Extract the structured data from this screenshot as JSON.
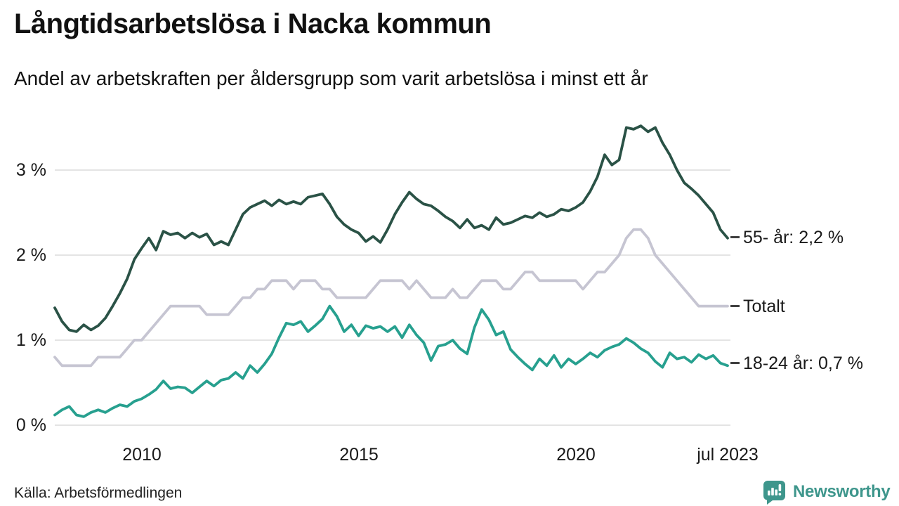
{
  "header": {
    "title": "Långtidsarbetslösa i Nacka kommun",
    "subtitle": "Andel av arbetskraften per åldersgrupp som varit arbetslösa i minst ett år"
  },
  "footer": {
    "source": "Källa: Arbetsförmedlingen",
    "brand": "Newsworthy"
  },
  "colors": {
    "background": "#ffffff",
    "text": "#1a1a1a",
    "grid": "#e4e4e4",
    "tick_dash": "#3f3f3f",
    "logo": "#3e968c",
    "series_55": "#2a5246",
    "series_total": "#c6c5d2",
    "series_18_24": "#27a08f"
  },
  "chart_data": {
    "type": "line",
    "title": "Långtidsarbetslösa i Nacka kommun",
    "subtitle": "Andel av arbetskraften per åldersgrupp som varit arbetslösa i minst ett år",
    "unit": "%",
    "x_start": "jan 2008",
    "x_end": "jul 2023",
    "x_step_months": 2,
    "grid": "horizontal-only",
    "legend_position": "end-of-line labels, right side",
    "ylim": [
      0,
      3.6
    ],
    "x_ticks": [
      {
        "label": "2010"
      },
      {
        "label": "2015"
      },
      {
        "label": "2020"
      },
      {
        "label": "jul 2023"
      }
    ],
    "y_ticks": [
      {
        "label": "3 %",
        "value": 3
      },
      {
        "label": "2 %",
        "value": 2
      },
      {
        "label": "1 %",
        "value": 1
      },
      {
        "label": "0 %",
        "value": 0
      }
    ],
    "series": [
      {
        "id": "total",
        "name": "Totalt",
        "end_label": "Totalt",
        "end_value": 1.4,
        "color": "#c6c5d2",
        "values": [
          0.8,
          0.7,
          0.7,
          0.7,
          0.7,
          0.7,
          0.8,
          0.8,
          0.8,
          0.8,
          0.9,
          1.0,
          1.0,
          1.1,
          1.2,
          1.3,
          1.4,
          1.4,
          1.4,
          1.4,
          1.4,
          1.3,
          1.3,
          1.3,
          1.3,
          1.4,
          1.5,
          1.5,
          1.6,
          1.6,
          1.7,
          1.7,
          1.7,
          1.6,
          1.7,
          1.7,
          1.7,
          1.6,
          1.6,
          1.5,
          1.5,
          1.5,
          1.5,
          1.5,
          1.6,
          1.7,
          1.7,
          1.7,
          1.7,
          1.6,
          1.7,
          1.6,
          1.5,
          1.5,
          1.5,
          1.6,
          1.5,
          1.5,
          1.6,
          1.7,
          1.7,
          1.7,
          1.6,
          1.6,
          1.7,
          1.8,
          1.8,
          1.7,
          1.7,
          1.7,
          1.7,
          1.7,
          1.7,
          1.6,
          1.7,
          1.8,
          1.8,
          1.9,
          2.0,
          2.2,
          2.3,
          2.3,
          2.2,
          2.0,
          1.9,
          1.8,
          1.7,
          1.6,
          1.5,
          1.4,
          1.4,
          1.4,
          1.4,
          1.4
        ]
      },
      {
        "id": "55",
        "name": "55- år",
        "end_label": "55- år: 2,2 %",
        "end_value": 2.2,
        "color": "#2a5246",
        "values": [
          1.38,
          1.22,
          1.12,
          1.1,
          1.18,
          1.12,
          1.17,
          1.26,
          1.4,
          1.55,
          1.72,
          1.95,
          2.08,
          2.2,
          2.06,
          2.28,
          2.24,
          2.26,
          2.2,
          2.26,
          2.21,
          2.25,
          2.12,
          2.16,
          2.12,
          2.3,
          2.48,
          2.56,
          2.6,
          2.64,
          2.58,
          2.65,
          2.6,
          2.63,
          2.6,
          2.68,
          2.7,
          2.72,
          2.6,
          2.45,
          2.36,
          2.3,
          2.26,
          2.16,
          2.22,
          2.15,
          2.3,
          2.48,
          2.62,
          2.74,
          2.66,
          2.6,
          2.58,
          2.52,
          2.45,
          2.4,
          2.32,
          2.42,
          2.32,
          2.35,
          2.3,
          2.44,
          2.36,
          2.38,
          2.42,
          2.46,
          2.44,
          2.5,
          2.45,
          2.48,
          2.54,
          2.52,
          2.56,
          2.62,
          2.75,
          2.92,
          3.18,
          3.06,
          3.12,
          3.5,
          3.48,
          3.52,
          3.45,
          3.5,
          3.32,
          3.18,
          3.0,
          2.85,
          2.78,
          2.7,
          2.6,
          2.5,
          2.3,
          2.2
        ]
      },
      {
        "id": "18-24",
        "name": "18-24 år",
        "end_label": "18-24 år: 0,7 %",
        "end_value": 0.7,
        "color": "#27a08f",
        "values": [
          0.12,
          0.18,
          0.22,
          0.12,
          0.1,
          0.15,
          0.18,
          0.15,
          0.2,
          0.24,
          0.22,
          0.28,
          0.31,
          0.36,
          0.42,
          0.52,
          0.43,
          0.45,
          0.44,
          0.38,
          0.45,
          0.52,
          0.46,
          0.53,
          0.55,
          0.62,
          0.55,
          0.7,
          0.62,
          0.72,
          0.84,
          1.03,
          1.2,
          1.18,
          1.22,
          1.1,
          1.17,
          1.25,
          1.4,
          1.28,
          1.1,
          1.18,
          1.05,
          1.17,
          1.14,
          1.16,
          1.1,
          1.16,
          1.03,
          1.18,
          1.06,
          0.97,
          0.76,
          0.93,
          0.95,
          1.0,
          0.9,
          0.84,
          1.15,
          1.36,
          1.24,
          1.06,
          1.1,
          0.89,
          0.8,
          0.72,
          0.65,
          0.78,
          0.7,
          0.82,
          0.68,
          0.78,
          0.72,
          0.78,
          0.85,
          0.8,
          0.88,
          0.92,
          0.95,
          1.02,
          0.97,
          0.9,
          0.85,
          0.75,
          0.68,
          0.85,
          0.78,
          0.8,
          0.74,
          0.83,
          0.78,
          0.82,
          0.73,
          0.7
        ]
      }
    ]
  }
}
